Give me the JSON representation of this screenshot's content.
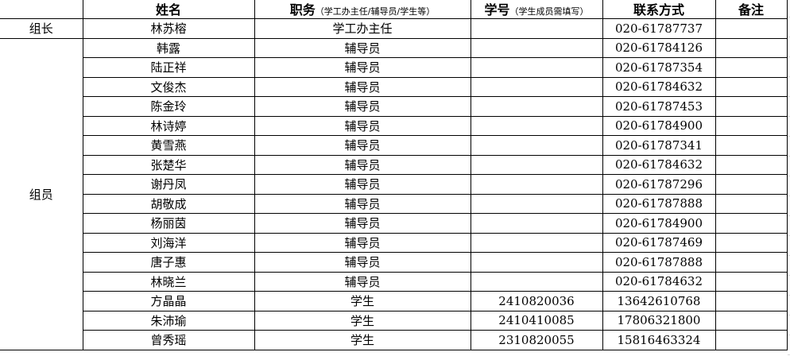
{
  "header": {
    "group_col": "",
    "name": "姓名",
    "position": "职务",
    "position_note": "（学工办主任/辅导员/学生等）",
    "student_id": "学号",
    "student_id_note": "（学生成员需填写）",
    "contact": "联系方式",
    "remarks": "备注"
  },
  "groups": {
    "leader": "组长",
    "member": "组员"
  },
  "rows": [
    {
      "name": "林苏榕",
      "position": "学工办主任",
      "student_id": "",
      "contact": "020-61787737",
      "remarks": ""
    },
    {
      "name": "韩露",
      "position": "辅导员",
      "student_id": "",
      "contact": "020-61784126",
      "remarks": ""
    },
    {
      "name": "陆正祥",
      "position": "辅导员",
      "student_id": "",
      "contact": "020-61787354",
      "remarks": ""
    },
    {
      "name": "文俊杰",
      "position": "辅导员",
      "student_id": "",
      "contact": "020-61784632",
      "remarks": ""
    },
    {
      "name": "陈金玲",
      "position": "辅导员",
      "student_id": "",
      "contact": "020-61787453",
      "remarks": ""
    },
    {
      "name": "林诗婷",
      "position": "辅导员",
      "student_id": "",
      "contact": "020-61784900",
      "remarks": ""
    },
    {
      "name": "黄雪燕",
      "position": "辅导员",
      "student_id": "",
      "contact": "020-61787341",
      "remarks": ""
    },
    {
      "name": "张楚华",
      "position": "辅导员",
      "student_id": "",
      "contact": "020-61784632",
      "remarks": ""
    },
    {
      "name": "谢丹凤",
      "position": "辅导员",
      "student_id": "",
      "contact": "020-61787296",
      "remarks": ""
    },
    {
      "name": "胡敬成",
      "position": "辅导员",
      "student_id": "",
      "contact": "020-61787888",
      "remarks": ""
    },
    {
      "name": "杨丽茵",
      "position": "辅导员",
      "student_id": "",
      "contact": "020-61784900",
      "remarks": ""
    },
    {
      "name": "刘海洋",
      "position": "辅导员",
      "student_id": "",
      "contact": "020-61787469",
      "remarks": ""
    },
    {
      "name": "唐子惠",
      "position": "辅导员",
      "student_id": "",
      "contact": "020-61787888",
      "remarks": ""
    },
    {
      "name": "林晓兰",
      "position": "辅导员",
      "student_id": "",
      "contact": "020-61784632",
      "remarks": ""
    },
    {
      "name": "方晶晶",
      "position": "学生",
      "student_id": "2410820036",
      "contact": "13642610768",
      "remarks": ""
    },
    {
      "name": "朱沛瑜",
      "position": "学生",
      "student_id": "2410410085",
      "contact": "17806321800",
      "remarks": ""
    },
    {
      "name": "曾秀瑶",
      "position": "学生",
      "student_id": "2310820055",
      "contact": "15816463324",
      "remarks": ""
    }
  ]
}
